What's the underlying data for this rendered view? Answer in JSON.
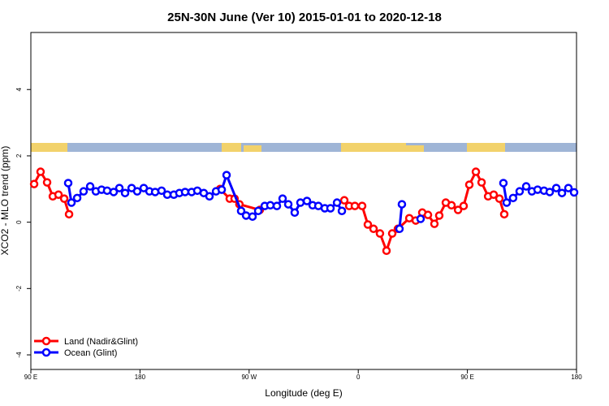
{
  "chart_data": {
    "type": "line",
    "title": "25N-30N June (Ver 10)   2015-01-01 to 2020-12-18",
    "x_label": "Longitude (deg E)",
    "y_label": "XCO2 - MLO trend (ppm)",
    "xlim": [
      90,
      540
    ],
    "ylim": [
      -4.44,
      5.72
    ],
    "xticks": [
      {
        "value": 90,
        "label": "90 E"
      },
      180,
      {
        "value": 270,
        "label": "90 W"
      },
      {
        "value": 360,
        "label": "0"
      },
      {
        "value": 450,
        "label": "90 E"
      },
      {
        "value": 540,
        "label": "180"
      }
    ],
    "yticks": [
      -4,
      -2,
      0,
      2,
      4
    ],
    "legend": "bottomleft",
    "series": [
      {
        "name": "Land (Nadir&Glint)",
        "color": "#ff0000",
        "x": [
          92.7,
          98,
          103.4,
          108.1,
          112.8,
          117.5,
          121.5,
          null,
          246,
          254,
          258,
          262,
          278.8,
          null,
          348.5,
          352.5,
          357.2,
          363.2,
          367.9,
          372.6,
          377.9,
          383.3,
          388,
          392.7,
          402.1,
          407.4,
          412.8,
          417.5,
          422.8,
          426.8,
          432.2,
          436.9,
          442.3,
          446.9,
          451.6,
          457,
          461.7,
          467.1,
          471.7,
          476.4,
          480.4
        ],
        "values": [
          1.15,
          1.52,
          1.2,
          0.78,
          0.83,
          0.71,
          0.24,
          null,
          1.0,
          0.71,
          0.71,
          0.54,
          0.37,
          null,
          0.66,
          0.49,
          0.49,
          0.49,
          -0.07,
          -0.2,
          -0.34,
          -0.86,
          -0.34,
          -0.2,
          0.12,
          0.05,
          0.29,
          0.22,
          -0.05,
          0.2,
          0.59,
          0.51,
          0.37,
          0.49,
          1.13,
          1.52,
          1.2,
          0.78,
          0.83,
          0.71,
          0.24
        ]
      },
      {
        "name": "Ocean (Glint)",
        "color": "#0000ff",
        "x": [
          120.8,
          123.5,
          128.2,
          133.5,
          138.9,
          143.6,
          148.3,
          152.9,
          158.3,
          163,
          167.7,
          173.1,
          177.7,
          183.1,
          187.8,
          192.5,
          197.8,
          202.5,
          207.9,
          212.5,
          217.2,
          222.6,
          227.3,
          232.6,
          237.3,
          242.7,
          247.4,
          251.4,
          263.4,
          267.5,
          272.8,
          277.5,
          282.9,
          287.5,
          292.9,
          297.6,
          302.3,
          307.6,
          312.3,
          317.7,
          322.4,
          327.1,
          332.4,
          337.1,
          342.5,
          346.5,
          null,
          394,
          396,
          null,
          411.4,
          null,
          479.7,
          482.4,
          487.7,
          493.1,
          498.5,
          503.2,
          507.9,
          513.2,
          517.9,
          523.3,
          528,
          533.3,
          538
        ],
        "values": [
          1.18,
          0.59,
          0.73,
          0.93,
          1.08,
          0.93,
          0.98,
          0.95,
          0.91,
          1.03,
          0.88,
          1.03,
          0.93,
          1.03,
          0.93,
          0.91,
          0.95,
          0.83,
          0.83,
          0.88,
          0.91,
          0.91,
          0.95,
          0.88,
          0.78,
          0.93,
          0.98,
          1.42,
          0.34,
          0.2,
          0.17,
          0.34,
          0.49,
          0.51,
          0.49,
          0.71,
          0.54,
          0.29,
          0.59,
          0.64,
          0.51,
          0.49,
          0.42,
          0.42,
          0.59,
          0.34,
          null,
          -0.2,
          0.54,
          null,
          0.1,
          null,
          1.18,
          0.59,
          0.73,
          0.93,
          1.08,
          0.93,
          0.98,
          0.95,
          0.91,
          1.03,
          0.88,
          1.03,
          0.9
        ]
      }
    ]
  }
}
